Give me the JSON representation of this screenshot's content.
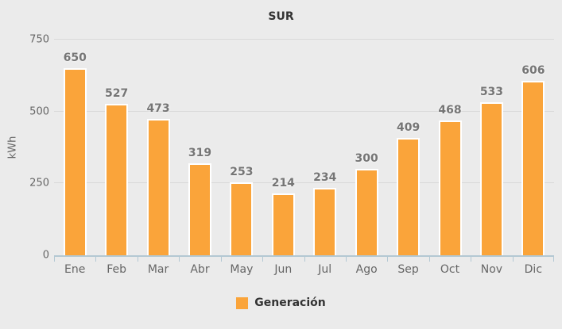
{
  "chart_data": {
    "type": "bar",
    "title": "SUR",
    "xlabel": "",
    "ylabel": "kWh",
    "categories": [
      "Ene",
      "Feb",
      "Mar",
      "Abr",
      "May",
      "Jun",
      "Jul",
      "Ago",
      "Sep",
      "Oct",
      "Nov",
      "Dic"
    ],
    "series": [
      {
        "name": "Generación",
        "values": [
          650,
          527,
          473,
          319,
          253,
          214,
          234,
          300,
          409,
          468,
          533,
          606
        ]
      }
    ],
    "ylim": [
      0,
      750
    ],
    "yticks": [
      0,
      250,
      500,
      750
    ],
    "grid": true,
    "legend_position": "bottom",
    "colors": {
      "bar": "#FAA43A",
      "bar_border": "#FFFFFF",
      "background": "#EBEBEB",
      "gridline": "#D9D9D9",
      "axis_line": "#B3C8D3",
      "value_label": "#757575",
      "axis_text": "#666666",
      "title_text": "#333333"
    }
  }
}
